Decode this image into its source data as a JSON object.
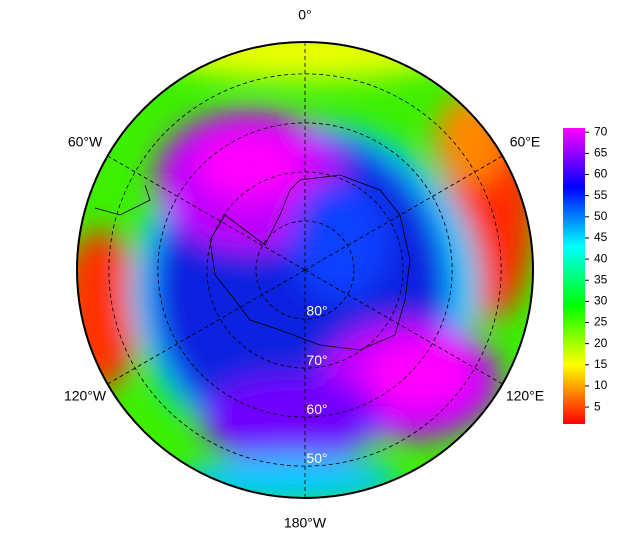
{
  "chart_data": {
    "type": "polar-map",
    "meridians": [
      {
        "value": 0,
        "label": "0°"
      },
      {
        "value": 60,
        "label": "60°E"
      },
      {
        "value": 120,
        "label": "120°E"
      },
      {
        "value": 180,
        "label": "180°W"
      },
      {
        "value": -120,
        "label": "120°W"
      },
      {
        "value": -60,
        "label": "60°W"
      }
    ],
    "parallels": [
      {
        "value": 80,
        "label": "80°"
      },
      {
        "value": 70,
        "label": "70°"
      },
      {
        "value": 60,
        "label": "60°"
      },
      {
        "value": 50,
        "label": "50°"
      }
    ],
    "boundary_lat": 43.5,
    "colorbar": {
      "clim": [
        1,
        71
      ],
      "ticks": [
        5,
        10,
        15,
        20,
        25,
        30,
        35,
        40,
        45,
        50,
        55,
        60,
        65,
        70
      ],
      "colormap": [
        "#ff0000",
        "#ffff00",
        "#00ff00",
        "#00ffff",
        "#0000ff",
        "#ff00ff"
      ]
    }
  }
}
